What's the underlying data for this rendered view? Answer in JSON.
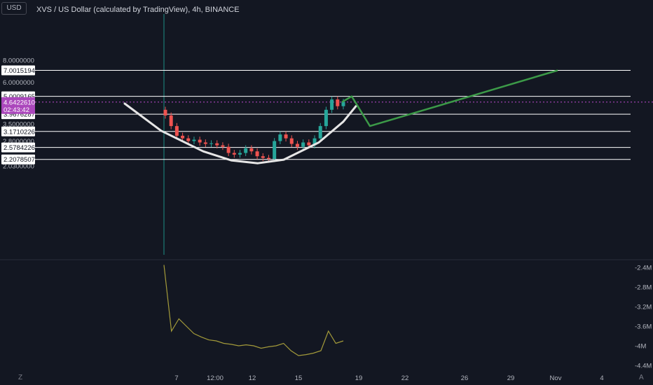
{
  "header": {
    "title": "XVS / US Dollar (calculated by TradingView), 4h, BINANCE",
    "currency_button": "USD"
  },
  "colors": {
    "background": "#131722",
    "up": "#26a69a",
    "down": "#ef5350",
    "arc": "#e6e6e6",
    "projection": "#3c9a48",
    "price_line": "#ab47bc",
    "indicator": "#a39a3a",
    "vertical_marker": "#1e8f86",
    "level_box": "#ffffff"
  },
  "icons": {
    "timezone_icon": "Z",
    "auto_scale_icon": "A"
  },
  "chart_data": [
    {
      "type": "line",
      "title": "XVS / US Dollar (calculated by TradingView), 4h, BINANCE",
      "scale": "log",
      "y_ticks": [
        "8.0000000",
        "6.0000000",
        "3.5000000",
        "2.8000000",
        "2.5000000",
        "2.0300000"
      ],
      "y_tick_values": [
        8.0,
        6.0,
        3.5,
        2.8,
        2.5,
        2.03
      ],
      "horizontal_levels": [
        7.0015194,
        5.0009165,
        3.9676287,
        3.1710226,
        2.5784226,
        2.2078507
      ],
      "horizontal_level_labels": [
        "7.0015194",
        "5.0009165",
        "3.9676287",
        "3.1710226",
        "2.5784226",
        "2.2078507"
      ],
      "current_price": "4.6422610",
      "countdown": "02:43:42",
      "x_ticks": [
        "7",
        "12:00",
        "12",
        "15",
        "19",
        "22",
        "26",
        "29",
        "Nov",
        "4"
      ],
      "candles_close_approx": [
        3.9,
        3.4,
        3.0,
        2.9,
        2.8,
        2.85,
        2.75,
        2.7,
        2.72,
        2.65,
        2.6,
        2.4,
        2.35,
        2.4,
        2.55,
        2.45,
        2.3,
        2.25,
        2.22,
        2.8,
        3.05,
        2.9,
        2.7,
        2.6,
        2.75,
        2.65,
        2.9,
        3.4,
        4.2,
        4.8,
        4.4,
        4.65
      ],
      "cup_curve": "rounded bottom",
      "projection_path": [
        4.64,
        5.0,
        3.4,
        7.0
      ]
    },
    {
      "type": "line",
      "series": [
        {
          "values": [
            -2.35,
            -3.7,
            -3.45,
            -3.6,
            -3.75,
            -3.82,
            -3.88,
            -3.9,
            -3.95,
            -3.97,
            -4.0,
            -3.98,
            -4.0,
            -4.05,
            -4.02,
            -4.0,
            -3.95,
            -4.1,
            -4.2,
            -4.18,
            -4.15,
            -4.1,
            -3.7,
            -3.95,
            -3.9
          ]
        }
      ],
      "y_ticks": [
        "-2.4M",
        "-2.8M",
        "-3.2M",
        "-3.6M",
        "-4M",
        "-4.4M"
      ],
      "y_tick_values": [
        -2.4,
        -2.8,
        -3.2,
        -3.6,
        -4.0,
        -4.4
      ]
    }
  ]
}
